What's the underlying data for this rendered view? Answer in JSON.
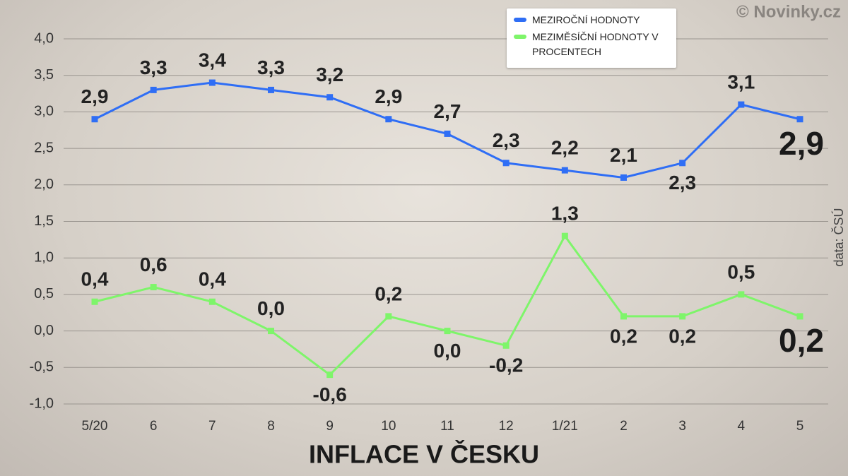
{
  "chart_data": {
    "type": "line",
    "title": "INFLACE V ČESKU",
    "watermark": "© Novinky.cz",
    "source": "data: ČSÚ",
    "categories": [
      "5/20",
      "6",
      "7",
      "8",
      "9",
      "10",
      "11",
      "12",
      "1/21",
      "2",
      "3",
      "4",
      "5"
    ],
    "series": [
      {
        "name": "MEZIROČNÍ HODNOTY",
        "color": "#2f6ef5",
        "values": [
          2.9,
          3.3,
          3.4,
          3.3,
          3.2,
          2.9,
          2.7,
          2.3,
          2.2,
          2.1,
          2.3,
          3.1,
          2.9
        ],
        "value_labels": [
          "2,9",
          "3,3",
          "3,4",
          "3,3",
          "3,2",
          "2,9",
          "2,7",
          "2,3",
          "2,2",
          "2,1",
          "2,3",
          "3,1",
          "2,9"
        ]
      },
      {
        "name": "MEZIMĚSÍČNÍ HODNOTY V PROCENTECH",
        "color": "#7ef56a",
        "values": [
          0.4,
          0.6,
          0.4,
          0.0,
          -0.6,
          0.2,
          0.0,
          -0.2,
          1.3,
          0.2,
          0.2,
          0.5,
          0.2
        ],
        "value_labels": [
          "0,4",
          "0,6",
          "0,4",
          "0,0",
          "-0,6",
          "0,2",
          "0,0",
          "-0,2",
          "1,3",
          "0,2",
          "0,2",
          "0,5",
          "0,2"
        ]
      }
    ],
    "ylim": [
      -1,
      4
    ],
    "yticks": [
      {
        "value": -1,
        "label": "-1,0"
      },
      {
        "value": -0.5,
        "label": "-0,5"
      },
      {
        "value": 0,
        "label": "0,0"
      },
      {
        "value": 0.5,
        "label": "0,5"
      },
      {
        "value": 1,
        "label": "1,0"
      },
      {
        "value": 1.5,
        "label": "1,5"
      },
      {
        "value": 2,
        "label": "2,0"
      },
      {
        "value": 2.5,
        "label": "2,5"
      },
      {
        "value": 3,
        "label": "3,0"
      },
      {
        "value": 3.5,
        "label": "3,5"
      },
      {
        "value": 4,
        "label": "4,0"
      }
    ],
    "grid": true
  }
}
